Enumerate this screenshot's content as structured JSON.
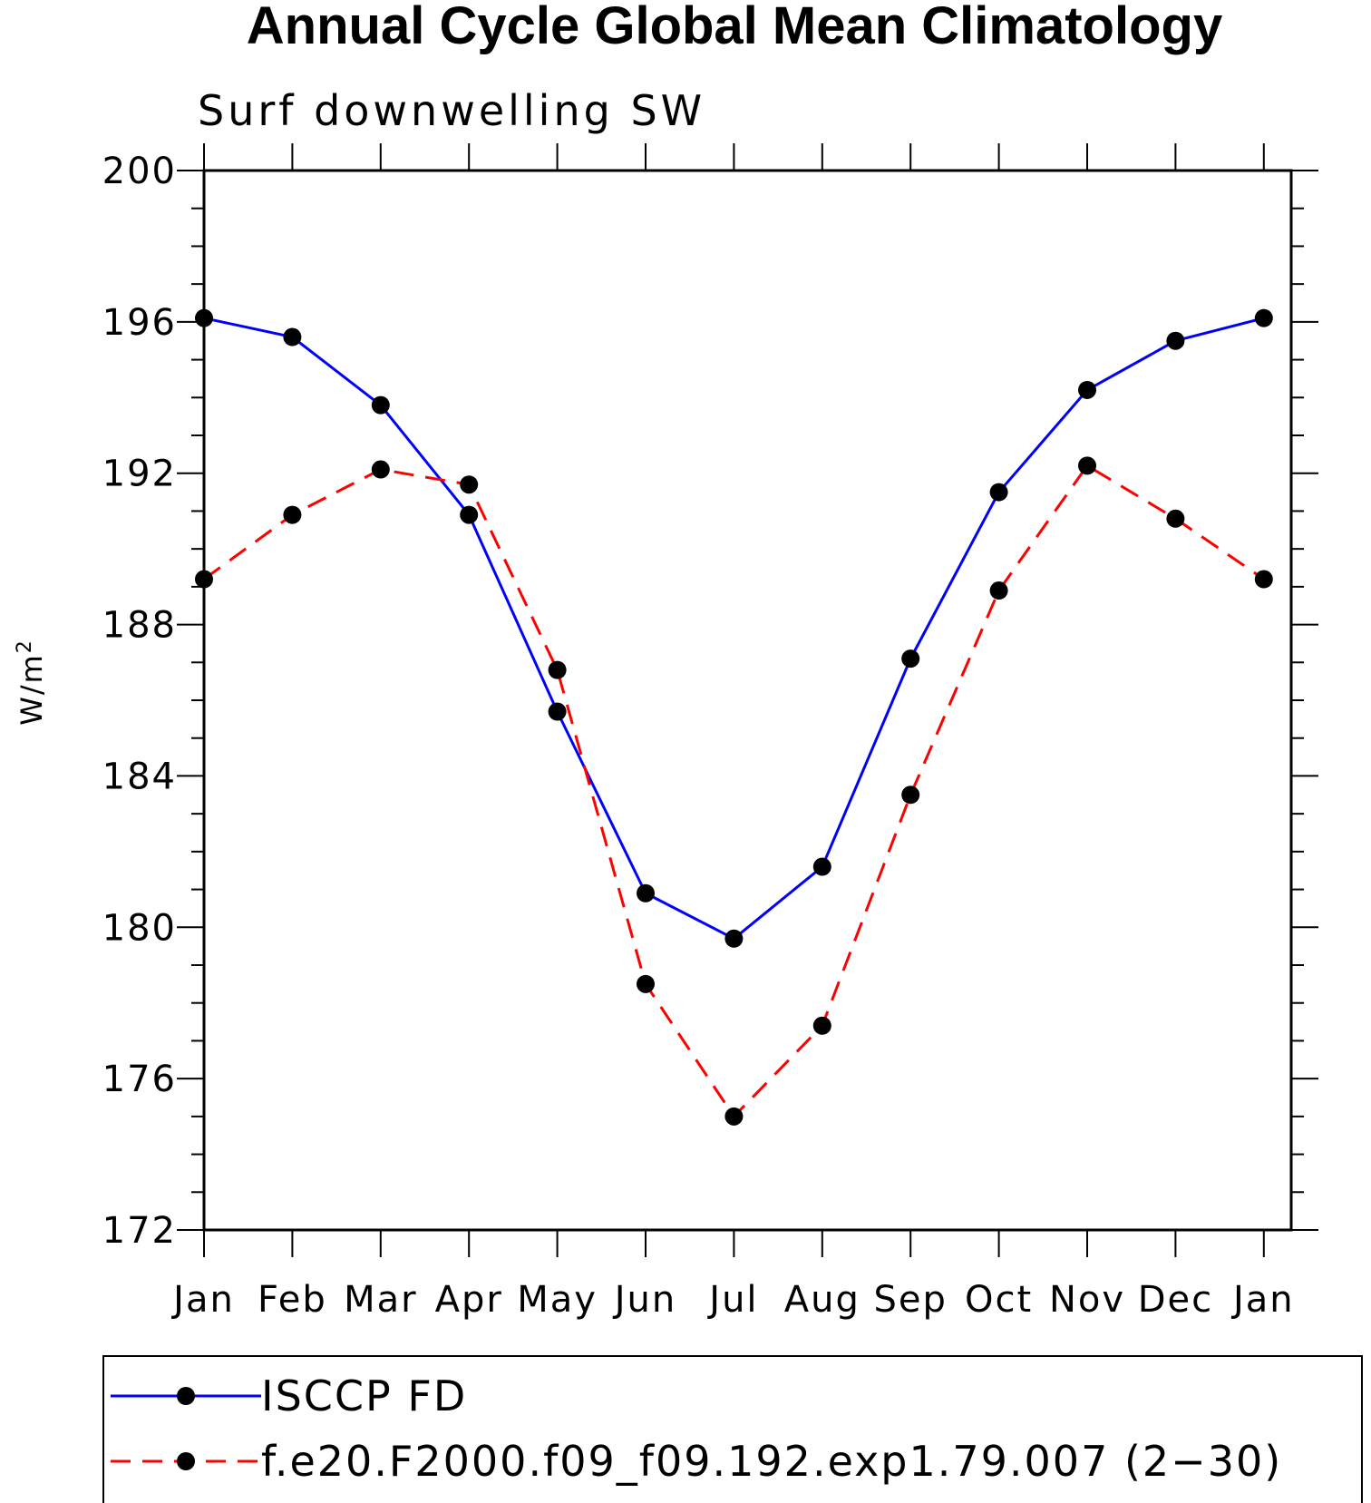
{
  "chart_data": {
    "type": "line",
    "title": "Annual Cycle Global Mean Climatology",
    "subtitle": "Surf downwelling SW",
    "ylabel": "W/m",
    "ylabel_superscript": "2",
    "xlabel": "",
    "ylim": [
      172,
      200
    ],
    "yticks": [
      172,
      176,
      180,
      184,
      188,
      192,
      196,
      200
    ],
    "grid": false,
    "legend_position": "bottom",
    "categories": [
      "Jan",
      "Feb",
      "Mar",
      "Apr",
      "May",
      "Jun",
      "Jul",
      "Aug",
      "Sep",
      "Oct",
      "Nov",
      "Dec",
      "Jan"
    ],
    "series": [
      {
        "name": "ISCCP FD",
        "color": "#0000ff",
        "line_style": "solid",
        "marker": "filled-circle",
        "values": [
          196.1,
          195.6,
          193.8,
          190.9,
          185.7,
          180.9,
          179.7,
          181.6,
          187.1,
          191.5,
          194.2,
          195.5,
          196.1
        ]
      },
      {
        "name": "f.e20.F2000.f09_f09.192.exp1.79.007 (2−30)",
        "color": "#ff0000",
        "line_style": "dashed",
        "marker": "filled-circle",
        "values": [
          189.2,
          190.9,
          192.1,
          191.7,
          186.8,
          178.5,
          175.0,
          177.4,
          183.5,
          188.9,
          192.2,
          190.8,
          189.2
        ]
      }
    ]
  }
}
